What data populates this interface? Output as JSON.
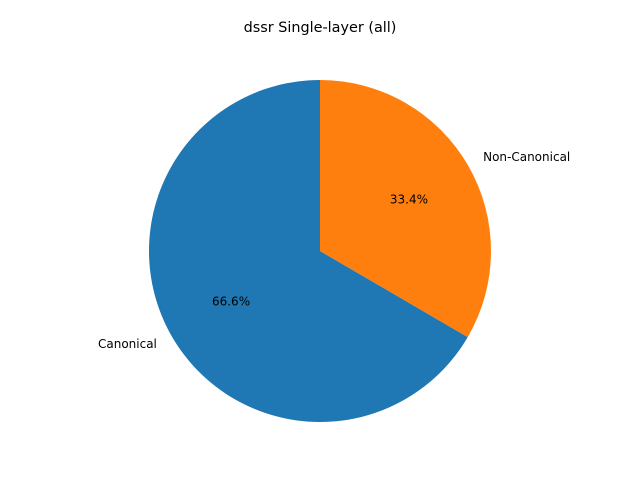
{
  "chart_data": {
    "type": "pie",
    "title": "dssr Single-layer (all)",
    "start_angle_deg": 90,
    "direction": "counterclockwise",
    "slices": [
      {
        "label": "Canonical",
        "value": 66.6,
        "pct_label": "66.6%",
        "color": "#1f77b4"
      },
      {
        "label": "Non-Canonical",
        "value": 33.4,
        "pct_label": "33.4%",
        "color": "#ff7f0e"
      }
    ]
  }
}
